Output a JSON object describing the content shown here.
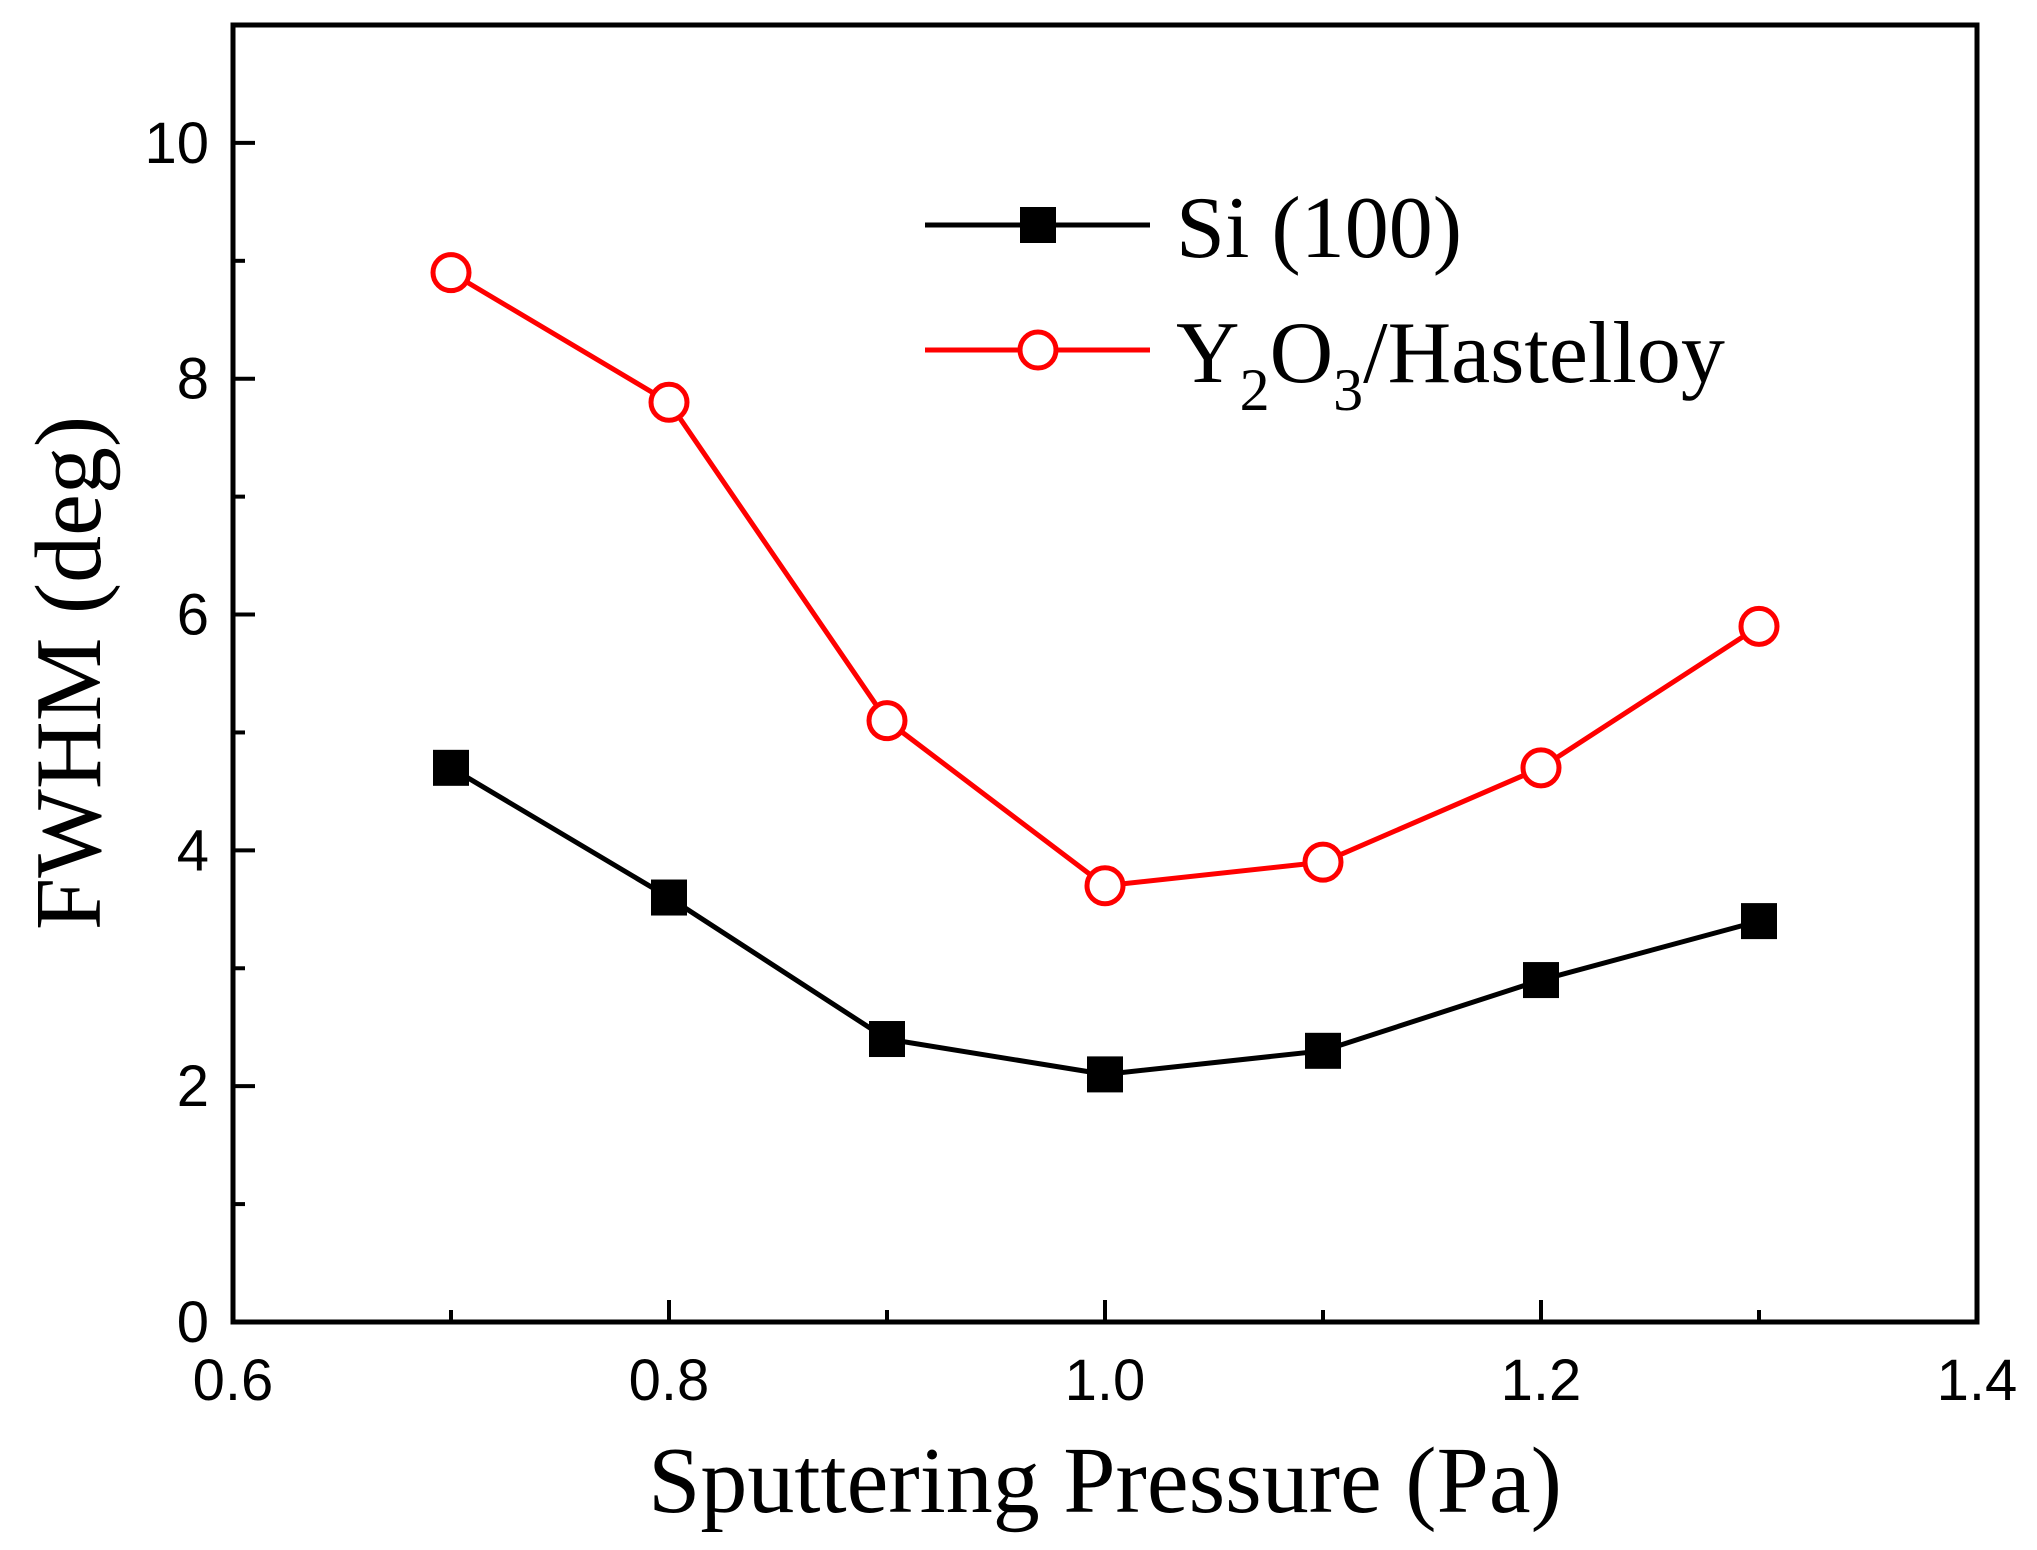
{
  "chart_data": {
    "type": "line",
    "title": "",
    "xlabel": "Sputtering Pressure (Pa)",
    "ylabel": "FWHM (deg)",
    "xlim": [
      0.6,
      1.4
    ],
    "ylim": [
      0,
      11
    ],
    "x_ticks": [
      "0.6",
      "0.8",
      "1.0",
      "1.2",
      "1.4"
    ],
    "y_ticks": [
      "0",
      "2",
      "4",
      "6",
      "8",
      "10"
    ],
    "grid": false,
    "legend_position": "top-right",
    "series": [
      {
        "name": "Si (100)",
        "color": "#000000",
        "marker": "filled-square",
        "x": [
          0.7,
          0.8,
          0.9,
          1.0,
          1.1,
          1.2,
          1.3
        ],
        "values": [
          4.7,
          3.6,
          2.4,
          2.1,
          2.3,
          2.9,
          3.4
        ]
      },
      {
        "name": "Y2O3/Hastelloy",
        "legend_parts": [
          "Y",
          "2",
          "O",
          "3",
          "/Hastelloy"
        ],
        "color": "#ff0000",
        "marker": "open-circle",
        "x": [
          0.7,
          0.8,
          0.9,
          1.0,
          1.1,
          1.2,
          1.3
        ],
        "values": [
          8.9,
          7.8,
          5.1,
          3.7,
          3.9,
          4.7,
          5.9
        ]
      }
    ]
  }
}
